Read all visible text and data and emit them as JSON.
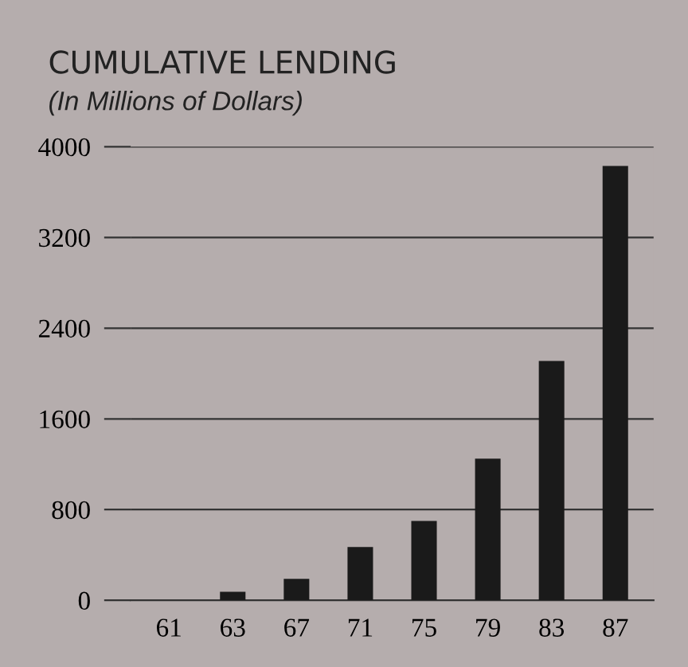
{
  "chart_data": {
    "type": "bar",
    "title": "CUMULATIVE LENDING",
    "subtitle": "(In Millions of Dollars)",
    "categories": [
      "61",
      "63",
      "67",
      "71",
      "75",
      "79",
      "83",
      "87"
    ],
    "values": [
      0,
      75,
      190,
      470,
      700,
      1250,
      2110,
      3830
    ],
    "color": "#1a1a1a",
    "ylim": [
      0,
      4000
    ],
    "yticks": [
      0,
      800,
      1600,
      2400,
      3200,
      4000
    ],
    "grid": "y"
  }
}
